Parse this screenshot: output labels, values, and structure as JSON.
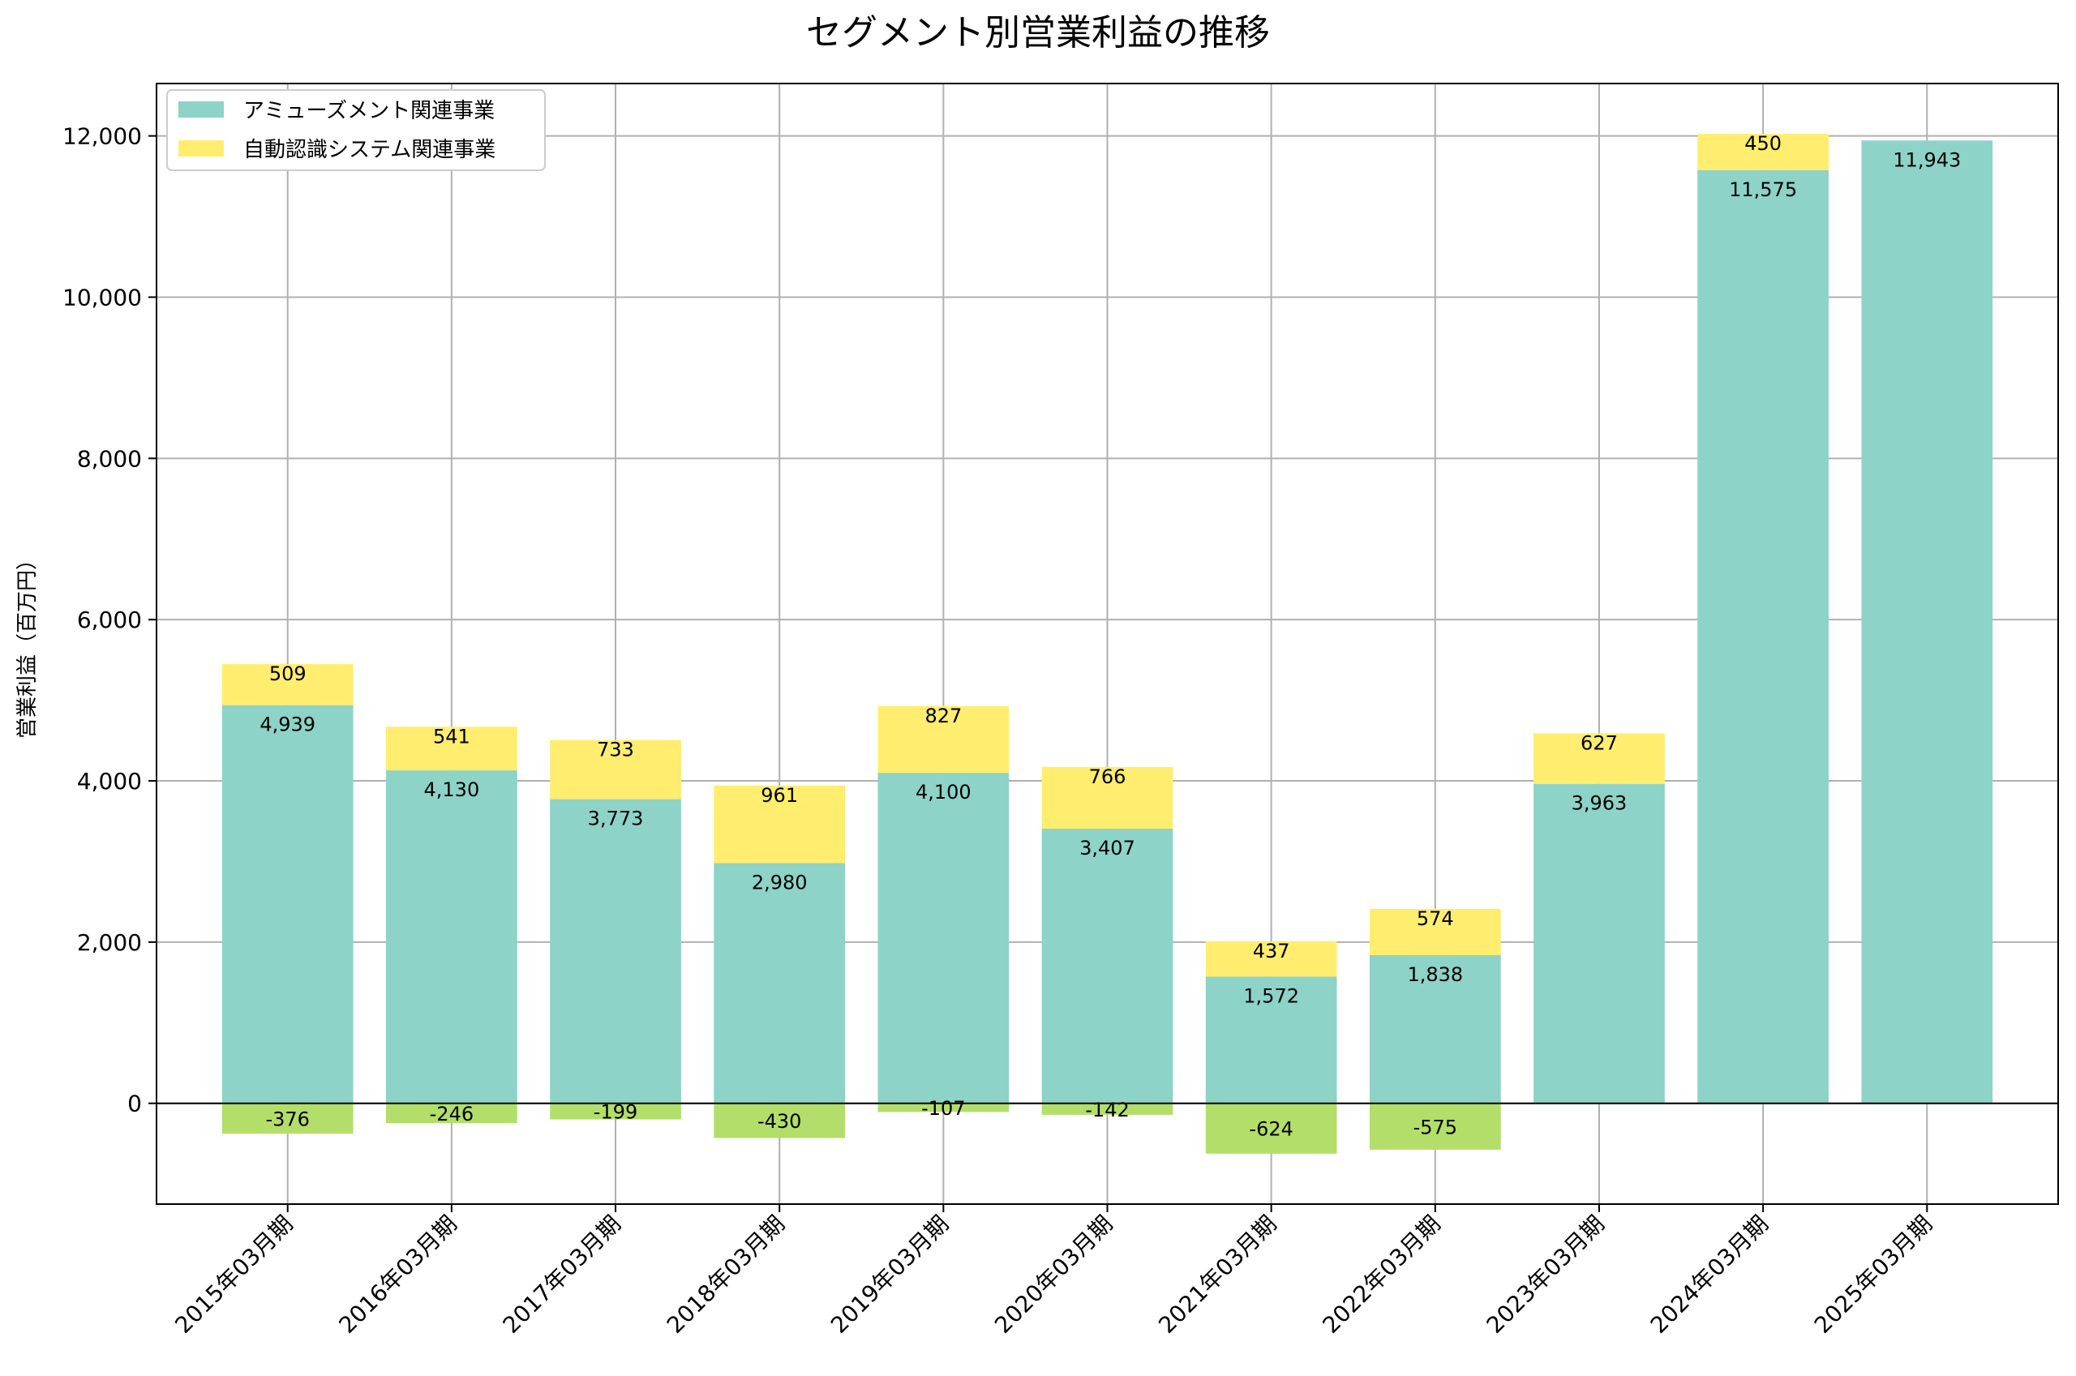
{
  "chart_data": {
    "type": "bar",
    "title": "セグメント別営業利益の推移",
    "ylabel": "営業利益（百万円）",
    "xlabel": "",
    "ylim": [
      -1250,
      12650
    ],
    "yticks": [
      0,
      2000,
      4000,
      6000,
      8000,
      10000,
      12000
    ],
    "ytick_labels": [
      "0",
      "2,000",
      "4,000",
      "6,000",
      "8,000",
      "10,000",
      "12,000"
    ],
    "grid": true,
    "legend_position": "top-left",
    "categories": [
      "2015年03月期",
      "2016年03月期",
      "2017年03月期",
      "2018年03月期",
      "2019年03月期",
      "2020年03月期",
      "2021年03月期",
      "2022年03月期",
      "2023年03月期",
      "2024年03月期",
      "2025年03月期"
    ],
    "series": [
      {
        "name": "アミューズメント関連事業",
        "color": "#8dd3c7",
        "values": [
          4939,
          4130,
          3773,
          2980,
          4100,
          3407,
          1572,
          1838,
          3963,
          11575,
          11943
        ],
        "labels": [
          "4,939",
          "4,130",
          "3,773",
          "2,980",
          "4,100",
          "3,407",
          "1,572",
          "1,838",
          "3,963",
          "11,575",
          "11,943"
        ]
      },
      {
        "name": "自動認識システム関連事業",
        "color": "#ffed6f",
        "negative_color": "#b3de69",
        "values": [
          509,
          541,
          733,
          961,
          827,
          766,
          437,
          574,
          627,
          450,
          null
        ],
        "labels": [
          "509",
          "541",
          "733",
          "961",
          "827",
          "766",
          "437",
          "574",
          "627",
          "450",
          null
        ]
      },
      {
        "color": "#b3de69",
        "values": [
          -376,
          -246,
          -199,
          -430,
          -107,
          -142,
          -624,
          -575,
          null,
          null,
          null
        ],
        "labels": [
          "-376",
          "-246",
          "-199",
          "-430",
          "-107",
          "-142",
          "-624",
          "-575",
          null,
          null,
          null
        ]
      }
    ]
  }
}
